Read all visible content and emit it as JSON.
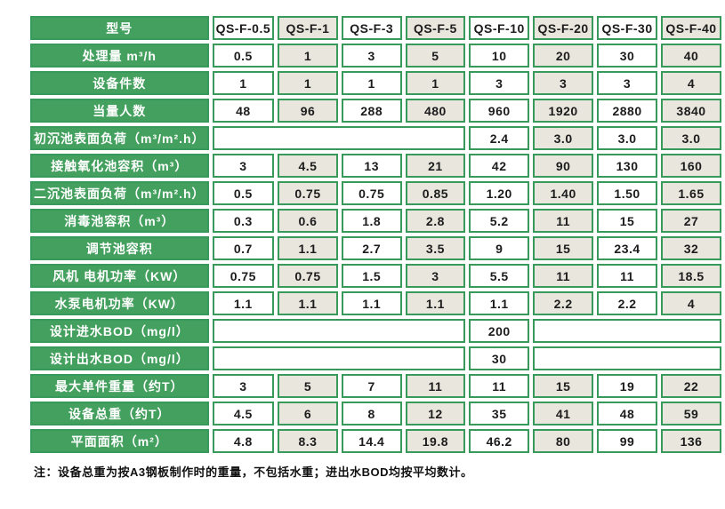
{
  "colors": {
    "green_fill": "#44a05e",
    "green_border": "#37995a",
    "green_border_dark": "#2f8a4f",
    "gray_cell": "#e8e6dd",
    "white_cell": "#ffffff",
    "text_dark": "#1c1c1c"
  },
  "table": {
    "header": {
      "label": "型号",
      "models": [
        "QS-F-0.5",
        "QS-F-1",
        "QS-F-3",
        "QS-F-5",
        "QS-F-10",
        "QS-F-20",
        "QS-F-30",
        "QS-F-40"
      ]
    },
    "rows": [
      {
        "label": "处理量 m³/h",
        "cells": [
          {
            "t": "0.5"
          },
          {
            "t": "1"
          },
          {
            "t": "3"
          },
          {
            "t": "5"
          },
          {
            "t": "10"
          },
          {
            "t": "20"
          },
          {
            "t": "30"
          },
          {
            "t": "40"
          }
        ]
      },
      {
        "label": "设备件数",
        "cells": [
          {
            "t": "1"
          },
          {
            "t": "1"
          },
          {
            "t": "1"
          },
          {
            "t": "1"
          },
          {
            "t": "3"
          },
          {
            "t": "3"
          },
          {
            "t": "3"
          },
          {
            "t": "4"
          }
        ]
      },
      {
        "label": "当量人数",
        "cells": [
          {
            "t": "48"
          },
          {
            "t": "96"
          },
          {
            "t": "288"
          },
          {
            "t": "480"
          },
          {
            "t": "960"
          },
          {
            "t": "1920"
          },
          {
            "t": "2880"
          },
          {
            "t": "3840"
          }
        ]
      },
      {
        "label": "初沉池表面负荷（m³/m².h）",
        "cells": [
          {
            "t": "",
            "span": 4
          },
          {
            "t": "2.4"
          },
          {
            "t": "3.0"
          },
          {
            "t": "3.0"
          },
          {
            "t": "3.0"
          }
        ]
      },
      {
        "label": "接触氧化池容积（m³）",
        "cells": [
          {
            "t": "3"
          },
          {
            "t": "4.5"
          },
          {
            "t": "13"
          },
          {
            "t": "21"
          },
          {
            "t": "42"
          },
          {
            "t": "90"
          },
          {
            "t": "130"
          },
          {
            "t": "160"
          }
        ]
      },
      {
        "label": "二沉池表面负荷（m³/m².h）",
        "cells": [
          {
            "t": "0.5"
          },
          {
            "t": "0.75"
          },
          {
            "t": "0.75"
          },
          {
            "t": "0.85"
          },
          {
            "t": "1.20"
          },
          {
            "t": "1.40"
          },
          {
            "t": "1.50"
          },
          {
            "t": "1.65"
          }
        ]
      },
      {
        "label": "消毒池容积（m³）",
        "cells": [
          {
            "t": "0.3"
          },
          {
            "t": "0.6"
          },
          {
            "t": "1.8"
          },
          {
            "t": "2.8"
          },
          {
            "t": "5.2"
          },
          {
            "t": "11"
          },
          {
            "t": "15"
          },
          {
            "t": "27"
          }
        ]
      },
      {
        "label": "调节池容积",
        "cells": [
          {
            "t": "0.7"
          },
          {
            "t": "1.1"
          },
          {
            "t": "2.7"
          },
          {
            "t": "3.5"
          },
          {
            "t": "9"
          },
          {
            "t": "15"
          },
          {
            "t": "23.4"
          },
          {
            "t": "32"
          }
        ]
      },
      {
        "label": "风机 电机功率（KW）",
        "cells": [
          {
            "t": "0.75"
          },
          {
            "t": "0.75"
          },
          {
            "t": "1.5"
          },
          {
            "t": "3"
          },
          {
            "t": "5.5"
          },
          {
            "t": "11"
          },
          {
            "t": "11"
          },
          {
            "t": "18.5"
          }
        ]
      },
      {
        "label": "水泵电机功率（KW）",
        "cells": [
          {
            "t": "1.1"
          },
          {
            "t": "1.1"
          },
          {
            "t": "1.1"
          },
          {
            "t": "1.1"
          },
          {
            "t": "1.1"
          },
          {
            "t": "2.2"
          },
          {
            "t": "2.2"
          },
          {
            "t": "4"
          }
        ]
      },
      {
        "label": "设计进水BOD（mg/l）",
        "cells": [
          {
            "t": "",
            "span": 4
          },
          {
            "t": "200"
          },
          {
            "t": "",
            "span": 3
          }
        ]
      },
      {
        "label": "设计出水BOD（mg/l）",
        "cells": [
          {
            "t": "",
            "span": 4
          },
          {
            "t": "30"
          },
          {
            "t": "",
            "span": 3
          }
        ]
      },
      {
        "label": "最大单件重量（约T）",
        "cells": [
          {
            "t": "3"
          },
          {
            "t": "5"
          },
          {
            "t": "7"
          },
          {
            "t": "11"
          },
          {
            "t": "11"
          },
          {
            "t": "15"
          },
          {
            "t": "19"
          },
          {
            "t": "22"
          }
        ]
      },
      {
        "label": "设备总重（约T）",
        "cells": [
          {
            "t": "4.5"
          },
          {
            "t": "6"
          },
          {
            "t": "8"
          },
          {
            "t": "12"
          },
          {
            "t": "35"
          },
          {
            "t": "41"
          },
          {
            "t": "48"
          },
          {
            "t": "59"
          }
        ]
      },
      {
        "label": "平面面积（m²）",
        "cells": [
          {
            "t": "4.8"
          },
          {
            "t": "8.3"
          },
          {
            "t": "14.4"
          },
          {
            "t": "19.8"
          },
          {
            "t": "46.2"
          },
          {
            "t": "80"
          },
          {
            "t": "99"
          },
          {
            "t": "136"
          }
        ]
      }
    ]
  },
  "footer": {
    "note": "注：设备总重为按A3钢板制作时的重量，不包括水重；进出水BOD均按平均数计。"
  }
}
